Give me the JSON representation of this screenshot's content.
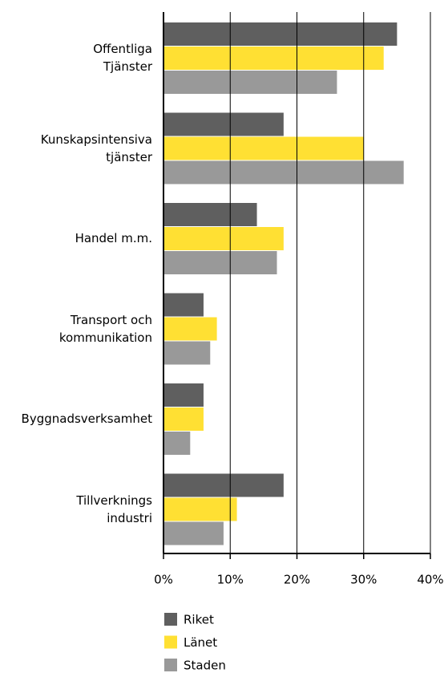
{
  "chart_data": {
    "type": "hbar",
    "categories": [
      "Offentliga\nTjänster",
      "Kunskapsintensiva\ntjänster",
      "Handel m.m.",
      "Transport och\nkommunikation",
      "Byggnadsverksamhet",
      "Tillverknings\nindustri"
    ],
    "series": [
      {
        "name": "Riket",
        "color": "#5f5f5f",
        "values": [
          35,
          18,
          14,
          6,
          6,
          18
        ]
      },
      {
        "name": "Länet",
        "color": "#ffe033",
        "values": [
          33,
          30,
          18,
          8,
          6,
          11
        ]
      },
      {
        "name": "Staden",
        "color": "#999999",
        "values": [
          26,
          36,
          17,
          7,
          4,
          9
        ]
      }
    ],
    "xlim": [
      0,
      40
    ],
    "xticks": [
      {
        "value": 0,
        "label": "0%"
      },
      {
        "value": 10,
        "label": "10%"
      },
      {
        "value": 20,
        "label": "20%"
      },
      {
        "value": 30,
        "label": "30%"
      },
      {
        "value": 40,
        "label": "40%"
      }
    ],
    "grid": true
  }
}
